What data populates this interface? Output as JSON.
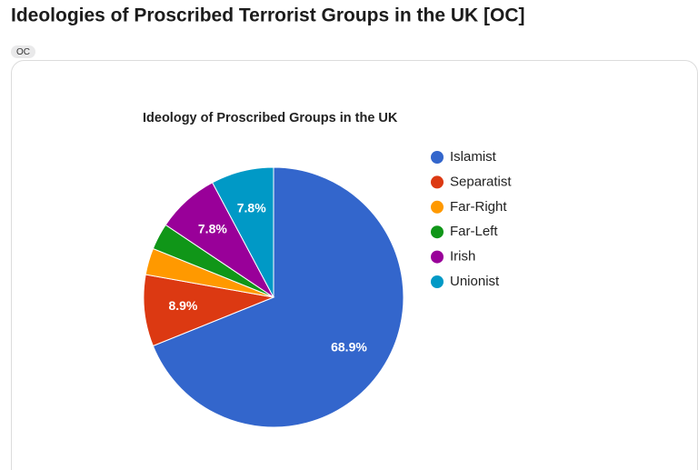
{
  "post": {
    "title": "Ideologies of Proscribed Terrorist Groups in the UK [OC]",
    "flair": "OC"
  },
  "chart_data": {
    "type": "pie",
    "title": "Ideology of Proscribed Groups in the UK",
    "categories": [
      "Islamist",
      "Separatist",
      "Far-Right",
      "Far-Left",
      "Irish",
      "Unionist"
    ],
    "values": [
      68.9,
      8.9,
      3.3,
      3.3,
      7.8,
      7.8
    ],
    "value_labels": [
      "68.9%",
      "8.9%",
      null,
      null,
      "7.8%",
      "7.8%"
    ],
    "colors": [
      "#3366cc",
      "#dc3912",
      "#ff9900",
      "#109618",
      "#990099",
      "#0099c6"
    ],
    "legend": "right"
  }
}
